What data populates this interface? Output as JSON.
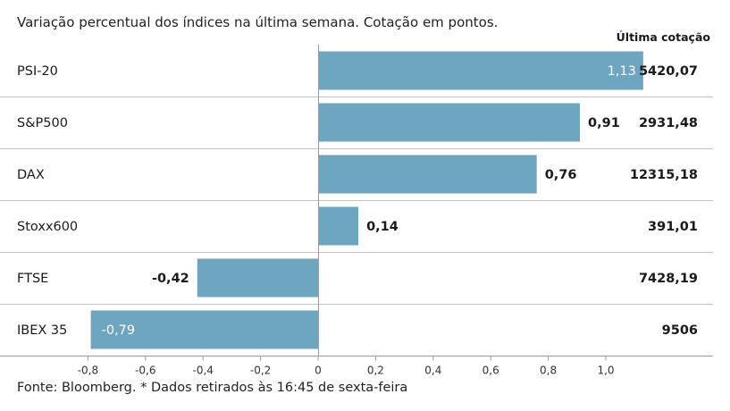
{
  "subtitle": "Variação percentual dos índices na última semana. Cotação em pontos.",
  "footnote": "Fonte: Bloomberg.  * Dados retirados às 16:45 de sexta-feira",
  "colors": {
    "bar": "#6fa6bf",
    "divider": "#c4c4c4",
    "text": "#1a1a1a"
  },
  "chart_data": {
    "type": "bar",
    "orientation": "horizontal",
    "categories": [
      "PSI-20",
      "S&P500",
      "DAX",
      "Stoxx600",
      "FTSE",
      "IBEX 35"
    ],
    "values": [
      1.13,
      0.91,
      0.76,
      0.14,
      -0.42,
      -0.79
    ],
    "value_labels": [
      "1,13",
      "0,91",
      "0,76",
      "0,14",
      "-0,42",
      "-0,79"
    ],
    "last_quote_header": "Última cotação",
    "last_quotes": [
      "5420,07",
      "2931,48",
      "12315,18",
      "391,01",
      "7428,19",
      "9506"
    ],
    "xlim": [
      -0.8,
      1.0
    ],
    "xticks": [
      -0.8,
      -0.6,
      -0.4,
      -0.2,
      0,
      0.2,
      0.4,
      0.6,
      0.8,
      1.0
    ],
    "xtick_labels": [
      "-0,8",
      "-0,6",
      "-0,4",
      "-0,2",
      "0",
      "0,2",
      "0,4",
      "0,6",
      "0,8",
      "1,0"
    ],
    "grid": false,
    "legend": "none"
  }
}
